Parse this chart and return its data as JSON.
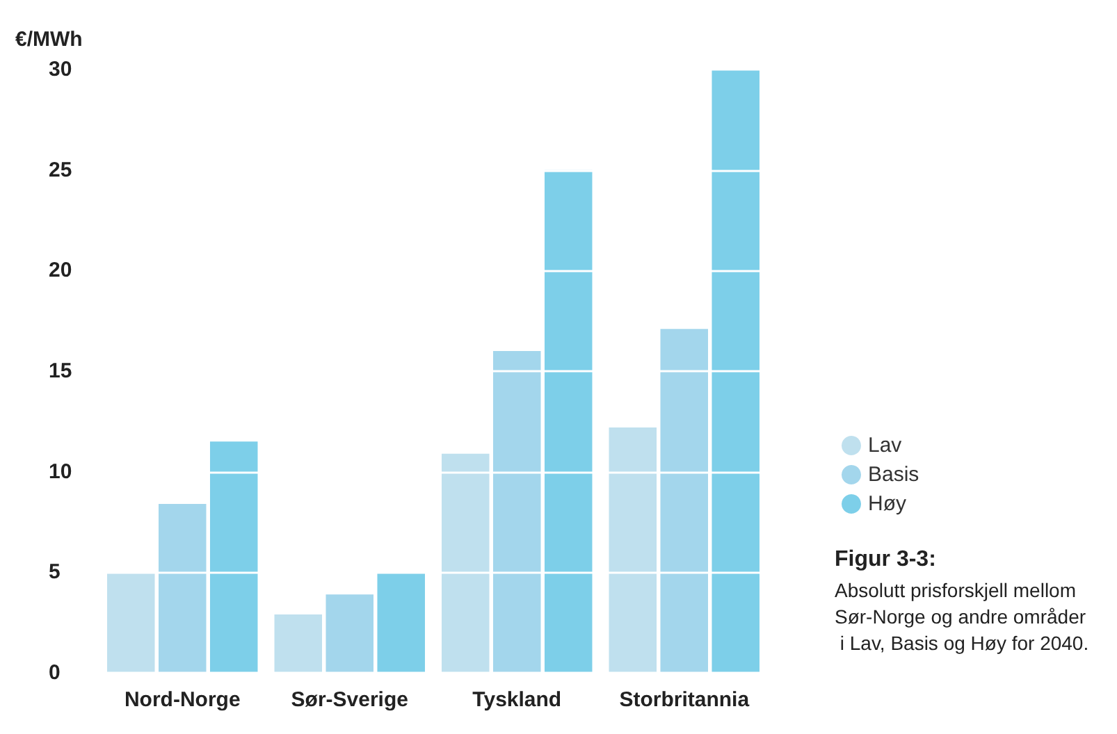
{
  "chart_data": {
    "type": "bar",
    "ylabel": "€/MWh",
    "categories": [
      "Nord-Norge",
      "Sør-Sverige",
      "Tyskland",
      "Storbritannia"
    ],
    "series": [
      {
        "name": "Lav",
        "color": "#bfe0ee",
        "values": [
          5,
          2.9,
          10.9,
          12.2
        ]
      },
      {
        "name": "Basis",
        "color": "#a3d6ec",
        "values": [
          8.4,
          3.9,
          16,
          17.1
        ]
      },
      {
        "name": "Høy",
        "color": "#7dcfe9",
        "values": [
          11.5,
          5,
          25,
          30
        ]
      }
    ],
    "ylim": [
      0,
      30
    ],
    "yticks": [
      0,
      5,
      10,
      15,
      20,
      25,
      30
    ],
    "grid": "y",
    "legend": "right",
    "annotations": [
      "Figur 3-3:",
      "Absolutt prisforskjell mellom Sør-Norge og andre områder i Lav, Basis og Høy for 2040."
    ]
  }
}
